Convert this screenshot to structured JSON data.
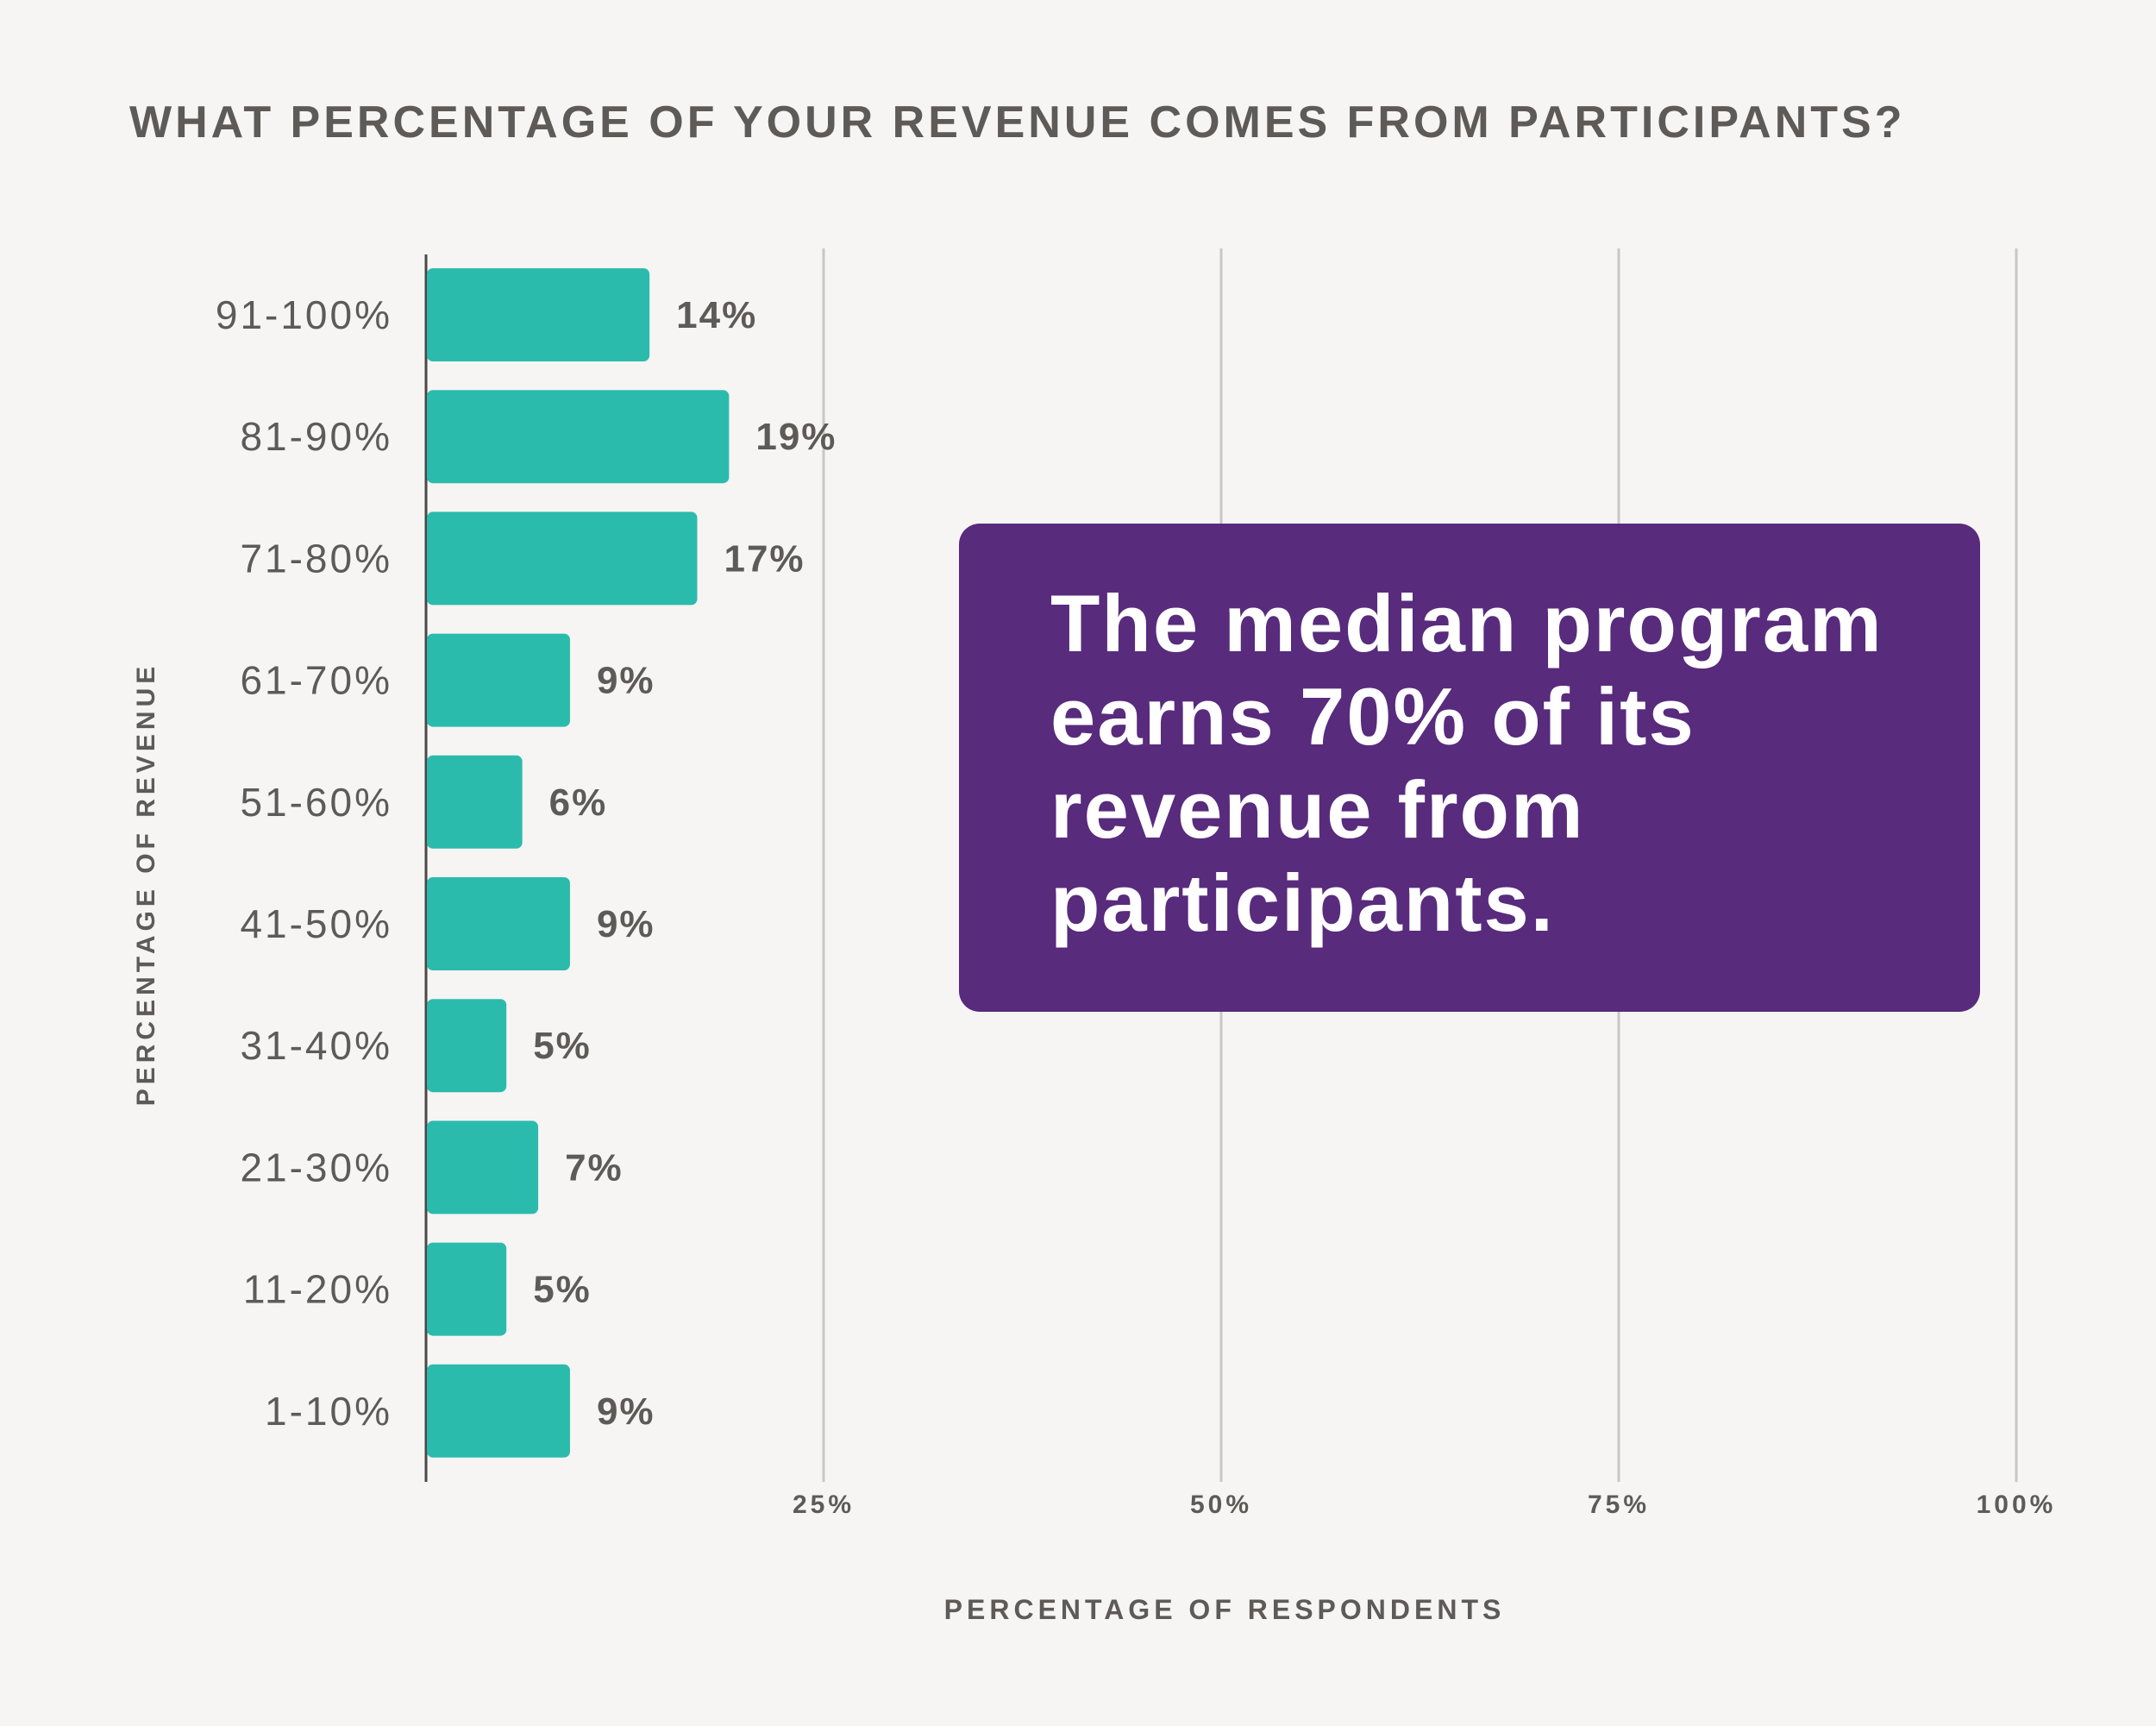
{
  "chart_data": {
    "type": "bar",
    "orientation": "horizontal",
    "title": "WHAT PERCENTAGE OF YOUR REVENUE COMES FROM PARTICIPANTS?",
    "xlabel": "PERCENTAGE OF RESPONDENTS",
    "ylabel": "PERCENTAGE OF REVENUE",
    "categories": [
      "91-100%",
      "81-90%",
      "71-80%",
      "61-70%",
      "51-60%",
      "41-50%",
      "31-40%",
      "21-30%",
      "11-20%",
      "1-10%"
    ],
    "values": [
      14,
      19,
      17,
      9,
      6,
      9,
      5,
      7,
      5,
      9
    ],
    "value_labels": [
      "14%",
      "19%",
      "17%",
      "9%",
      "6%",
      "9%",
      "5%",
      "7%",
      "5%",
      "9%"
    ],
    "xlim": [
      0,
      100
    ],
    "xticks": [
      25,
      50,
      75,
      100
    ],
    "xtick_labels": [
      "25%",
      "50%",
      "75%",
      "100%"
    ],
    "grid": true,
    "bar_color": "#2bbbad",
    "text_color": "#5e5a58",
    "grid_color": "#c9c7c5"
  },
  "callout": {
    "text": "The median program earns 70% of its revenue from participants.",
    "background_color": "#582b7d",
    "text_color": "#ffffff"
  }
}
